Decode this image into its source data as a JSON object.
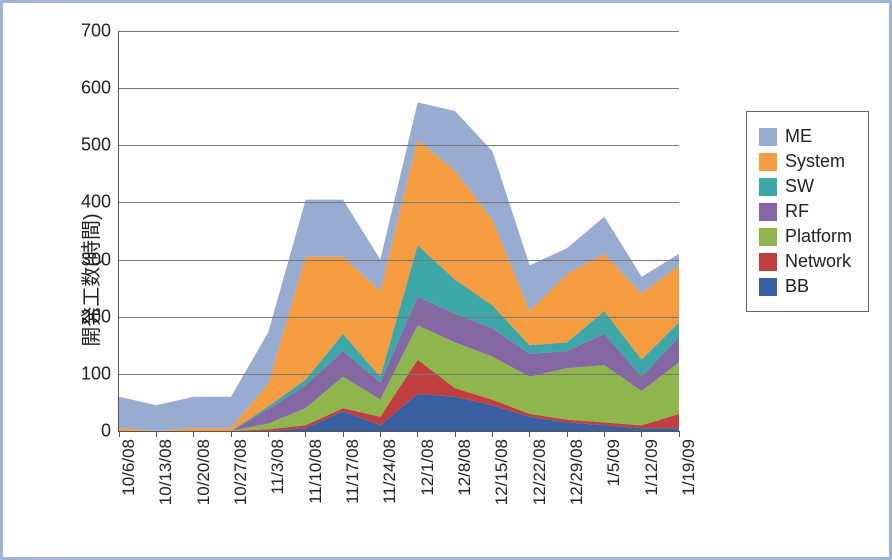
{
  "chart": {
    "type": "stacked-area",
    "ylabel": "開発工数(時間)",
    "background_color": "#ffffff",
    "border_color": "#9db5d2",
    "axis_color": "#555555",
    "grid_color": "#777777",
    "label_fontsize": 18,
    "ylabel_fontsize": 20,
    "ylim": [
      0,
      700
    ],
    "ytick_step": 100,
    "yticks": [
      0,
      100,
      200,
      300,
      400,
      500,
      600,
      700
    ],
    "categories": [
      "10/6/08",
      "10/13/08",
      "10/20/08",
      "10/27/08",
      "11/3/08",
      "11/10/08",
      "11/17/08",
      "11/24/08",
      "12/1/08",
      "12/8/08",
      "12/15/08",
      "12/22/08",
      "12/29/08",
      "1/5/09",
      "1/12/09",
      "1/19/09"
    ],
    "series_order_bottom_to_top": [
      "BB",
      "Network",
      "Platform",
      "RF",
      "SW",
      "System",
      "ME"
    ],
    "series": {
      "BB": [
        0,
        0,
        0,
        0,
        0,
        5,
        35,
        10,
        65,
        60,
        45,
        25,
        15,
        10,
        5,
        5
      ],
      "Network": [
        0,
        0,
        0,
        0,
        3,
        5,
        5,
        15,
        60,
        15,
        10,
        5,
        5,
        5,
        5,
        25
      ],
      "Platform": [
        0,
        0,
        0,
        0,
        10,
        30,
        55,
        30,
        60,
        80,
        75,
        65,
        90,
        100,
        60,
        90
      ],
      "RF": [
        0,
        0,
        0,
        0,
        25,
        40,
        45,
        30,
        50,
        50,
        50,
        40,
        30,
        55,
        25,
        45
      ],
      "SW": [
        0,
        0,
        0,
        0,
        5,
        10,
        30,
        10,
        90,
        60,
        40,
        15,
        15,
        40,
        30,
        25
      ],
      "System": [
        5,
        0,
        5,
        5,
        40,
        215,
        135,
        150,
        185,
        190,
        150,
        60,
        120,
        100,
        115,
        100
      ],
      "ME": [
        55,
        45,
        55,
        55,
        90,
        100,
        100,
        55,
        65,
        105,
        120,
        80,
        45,
        65,
        30,
        20
      ]
    },
    "colors": {
      "ME": "#98acd2",
      "System": "#f59b40",
      "SW": "#3da6a6",
      "RF": "#8467a3",
      "Platform": "#8fb64c",
      "Network": "#c1403f",
      "BB": "#3a5fa0"
    },
    "legend_order": [
      "ME",
      "System",
      "SW",
      "RF",
      "Platform",
      "Network",
      "BB"
    ],
    "legend_labels": {
      "ME": "ME",
      "System": "System",
      "SW": "SW",
      "RF": "RF",
      "Platform": "Platform",
      "Network": "Network",
      "BB": "BB"
    }
  }
}
